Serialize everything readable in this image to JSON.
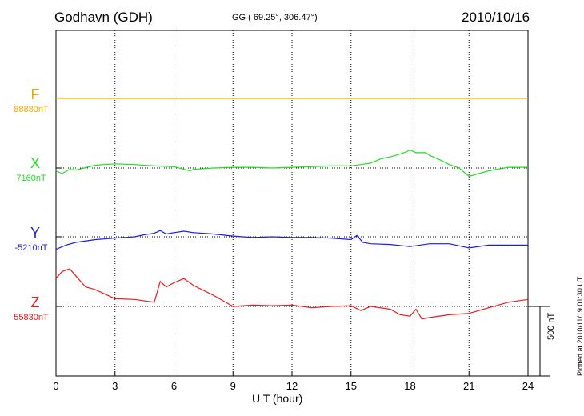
{
  "header": {
    "station": "Godhavn (GDH)",
    "coords": "GG ( 69.25°, 306.47°)",
    "date": "2010/10/16"
  },
  "plotted_note": "Plotted at 2010/11/19 01:30 UT",
  "chart_data": {
    "type": "line",
    "title": "Godhavn (GDH)",
    "xlabel": "U T (hour)",
    "x_ticks": [
      "0",
      "3",
      "6",
      "9",
      "12",
      "15",
      "18",
      "21",
      "24"
    ],
    "xlim": [
      0,
      24
    ],
    "grid": true,
    "scale_bar": {
      "value": 500,
      "label": "500 nT"
    },
    "series": [
      {
        "name": "F",
        "baseline_label": "88880nT",
        "color": "#f0a800",
        "points": [
          [
            0,
            0
          ],
          [
            24,
            0
          ]
        ]
      },
      {
        "name": "X",
        "baseline_label": "7160nT",
        "color": "#22dd22",
        "points": [
          [
            0,
            -20
          ],
          [
            0.3,
            -40
          ],
          [
            0.7,
            -10
          ],
          [
            1,
            -15
          ],
          [
            2,
            20
          ],
          [
            3,
            30
          ],
          [
            4,
            25
          ],
          [
            5,
            15
          ],
          [
            6,
            10
          ],
          [
            6.8,
            -20
          ],
          [
            7,
            -10
          ],
          [
            8,
            0
          ],
          [
            9,
            5
          ],
          [
            10,
            5
          ],
          [
            11,
            0
          ],
          [
            12,
            5
          ],
          [
            13,
            10
          ],
          [
            14,
            15
          ],
          [
            15,
            15
          ],
          [
            15.5,
            25
          ],
          [
            16,
            35
          ],
          [
            16.5,
            65
          ],
          [
            17,
            80
          ],
          [
            17.5,
            100
          ],
          [
            17.8,
            115
          ],
          [
            18,
            130
          ],
          [
            18.3,
            110
          ],
          [
            18.8,
            110
          ],
          [
            19,
            90
          ],
          [
            19.5,
            60
          ],
          [
            20,
            25
          ],
          [
            20.5,
            0
          ],
          [
            21,
            -60
          ],
          [
            21.5,
            -40
          ],
          [
            22,
            -20
          ],
          [
            23,
            5
          ],
          [
            24,
            5
          ]
        ]
      },
      {
        "name": "Y",
        "baseline_label": "-5210nT",
        "color": "#1a1aee",
        "points": [
          [
            0,
            -90
          ],
          [
            0.5,
            -60
          ],
          [
            1,
            -40
          ],
          [
            2,
            -20
          ],
          [
            3,
            -10
          ],
          [
            4,
            0
          ],
          [
            4.5,
            15
          ],
          [
            5,
            25
          ],
          [
            5.3,
            45
          ],
          [
            5.6,
            20
          ],
          [
            6,
            30
          ],
          [
            6.5,
            40
          ],
          [
            7,
            30
          ],
          [
            8,
            20
          ],
          [
            9,
            5
          ],
          [
            10,
            -5
          ],
          [
            11,
            0
          ],
          [
            12,
            -5
          ],
          [
            13,
            -5
          ],
          [
            14,
            -10
          ],
          [
            15,
            -20
          ],
          [
            15.3,
            10
          ],
          [
            15.6,
            -40
          ],
          [
            16,
            -50
          ],
          [
            17,
            -55
          ],
          [
            18,
            -70
          ],
          [
            19,
            -50
          ],
          [
            20,
            -50
          ],
          [
            21,
            -80
          ],
          [
            22,
            -60
          ],
          [
            23,
            -60
          ],
          [
            24,
            -60
          ]
        ]
      },
      {
        "name": "Z",
        "baseline_label": "55830nT",
        "color": "#ee1a1a",
        "points": [
          [
            0,
            200
          ],
          [
            0.3,
            250
          ],
          [
            0.7,
            270
          ],
          [
            1,
            220
          ],
          [
            1.5,
            140
          ],
          [
            2,
            120
          ],
          [
            3,
            55
          ],
          [
            4,
            50
          ],
          [
            5,
            30
          ],
          [
            5.3,
            180
          ],
          [
            5.6,
            140
          ],
          [
            6,
            170
          ],
          [
            6.5,
            200
          ],
          [
            7,
            150
          ],
          [
            8,
            80
          ],
          [
            9,
            0
          ],
          [
            10,
            10
          ],
          [
            11,
            5
          ],
          [
            12,
            10
          ],
          [
            13,
            -10
          ],
          [
            14,
            0
          ],
          [
            15,
            5
          ],
          [
            15.5,
            -30
          ],
          [
            16,
            0
          ],
          [
            17,
            -20
          ],
          [
            17.5,
            -60
          ],
          [
            18,
            -70
          ],
          [
            18.3,
            -20
          ],
          [
            18.6,
            -90
          ],
          [
            19,
            -80
          ],
          [
            20,
            -60
          ],
          [
            21,
            -50
          ],
          [
            22,
            -10
          ],
          [
            23,
            30
          ],
          [
            24,
            50
          ]
        ]
      }
    ]
  }
}
